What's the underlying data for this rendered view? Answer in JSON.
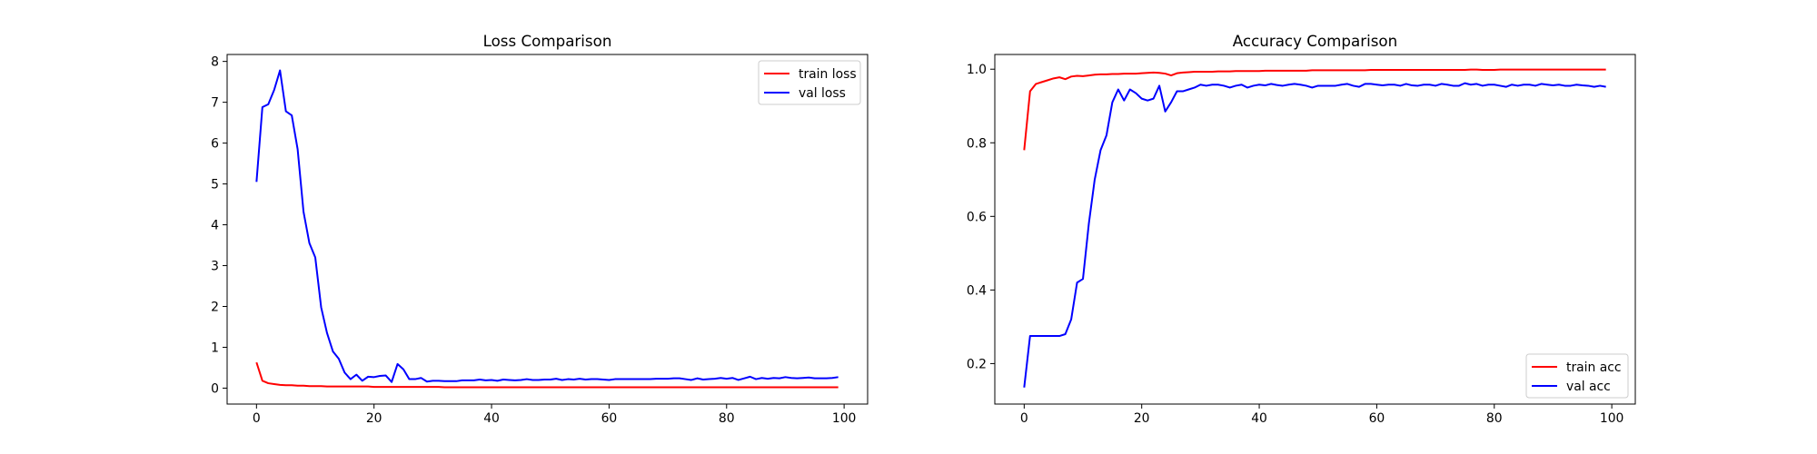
{
  "chart_data": [
    {
      "type": "line",
      "title": "Loss Comparison",
      "xlabel": "",
      "ylabel": "",
      "xlim": [
        -5,
        104
      ],
      "ylim": [
        -0.39,
        8.17
      ],
      "xticks": [
        0,
        20,
        40,
        60,
        80,
        100
      ],
      "yticks": [
        0,
        1,
        2,
        3,
        4,
        5,
        6,
        7,
        8
      ],
      "legend_position": "top-right",
      "grid": false,
      "series": [
        {
          "name": "train loss",
          "color": "#ff0000",
          "values": [
            0.63,
            0.18,
            0.12,
            0.1,
            0.08,
            0.07,
            0.07,
            0.06,
            0.06,
            0.05,
            0.05,
            0.05,
            0.04,
            0.04,
            0.04,
            0.04,
            0.04,
            0.04,
            0.04,
            0.04,
            0.03,
            0.03,
            0.03,
            0.03,
            0.03,
            0.03,
            0.03,
            0.03,
            0.03,
            0.03,
            0.03,
            0.03,
            0.02,
            0.02,
            0.02,
            0.02,
            0.02,
            0.02,
            0.02,
            0.02,
            0.02,
            0.02,
            0.02,
            0.02,
            0.02,
            0.02,
            0.02,
            0.02,
            0.02,
            0.02,
            0.02,
            0.02,
            0.02,
            0.02,
            0.02,
            0.02,
            0.02,
            0.02,
            0.02,
            0.02,
            0.02,
            0.02,
            0.02,
            0.02,
            0.02,
            0.02,
            0.02,
            0.02,
            0.02,
            0.02,
            0.02,
            0.02,
            0.02,
            0.02,
            0.02,
            0.02,
            0.02,
            0.02,
            0.02,
            0.02,
            0.02,
            0.02,
            0.02,
            0.02,
            0.02,
            0.02,
            0.02,
            0.02,
            0.02,
            0.02,
            0.02,
            0.02,
            0.02,
            0.02,
            0.02,
            0.02,
            0.02,
            0.02,
            0.02,
            0.02
          ]
        },
        {
          "name": "val loss",
          "color": "#0000ff",
          "values": [
            5.05,
            6.88,
            6.95,
            7.3,
            7.78,
            6.78,
            6.68,
            5.85,
            4.32,
            3.55,
            3.2,
            1.98,
            1.35,
            0.9,
            0.72,
            0.38,
            0.22,
            0.33,
            0.18,
            0.28,
            0.27,
            0.3,
            0.31,
            0.15,
            0.59,
            0.46,
            0.22,
            0.22,
            0.25,
            0.16,
            0.18,
            0.18,
            0.17,
            0.17,
            0.17,
            0.19,
            0.19,
            0.19,
            0.21,
            0.19,
            0.2,
            0.18,
            0.21,
            0.2,
            0.19,
            0.2,
            0.22,
            0.2,
            0.2,
            0.21,
            0.21,
            0.23,
            0.2,
            0.22,
            0.21,
            0.23,
            0.21,
            0.22,
            0.22,
            0.21,
            0.2,
            0.22,
            0.22,
            0.22,
            0.22,
            0.22,
            0.22,
            0.22,
            0.23,
            0.23,
            0.23,
            0.24,
            0.24,
            0.22,
            0.2,
            0.24,
            0.21,
            0.22,
            0.23,
            0.25,
            0.23,
            0.25,
            0.2,
            0.24,
            0.28,
            0.22,
            0.25,
            0.23,
            0.25,
            0.24,
            0.27,
            0.25,
            0.24,
            0.25,
            0.26,
            0.24,
            0.24,
            0.24,
            0.25,
            0.27
          ]
        }
      ]
    },
    {
      "type": "line",
      "title": "Accuracy Comparison",
      "xlabel": "",
      "ylabel": "",
      "xlim": [
        -5,
        104
      ],
      "ylim": [
        0.09,
        1.04
      ],
      "xticks": [
        0,
        20,
        40,
        60,
        80,
        100
      ],
      "yticks": [
        0.2,
        0.4,
        0.6,
        0.8,
        1.0
      ],
      "ytick_labels": [
        "0.2",
        "0.4",
        "0.6",
        "0.8",
        "1.0"
      ],
      "legend_position": "bottom-right",
      "grid": false,
      "series": [
        {
          "name": "train acc",
          "color": "#ff0000",
          "values": [
            0.78,
            0.94,
            0.96,
            0.965,
            0.97,
            0.975,
            0.978,
            0.973,
            0.98,
            0.982,
            0.981,
            0.983,
            0.985,
            0.986,
            0.986,
            0.987,
            0.987,
            0.988,
            0.988,
            0.988,
            0.989,
            0.99,
            0.991,
            0.99,
            0.988,
            0.983,
            0.989,
            0.991,
            0.992,
            0.993,
            0.993,
            0.993,
            0.993,
            0.994,
            0.994,
            0.994,
            0.995,
            0.995,
            0.995,
            0.995,
            0.995,
            0.996,
            0.996,
            0.996,
            0.996,
            0.996,
            0.996,
            0.996,
            0.996,
            0.997,
            0.997,
            0.997,
            0.997,
            0.997,
            0.997,
            0.997,
            0.997,
            0.997,
            0.997,
            0.998,
            0.998,
            0.998,
            0.998,
            0.998,
            0.998,
            0.998,
            0.998,
            0.998,
            0.998,
            0.998,
            0.998,
            0.998,
            0.998,
            0.998,
            0.998,
            0.998,
            0.999,
            0.999,
            0.998,
            0.998,
            0.998,
            0.999,
            0.999,
            0.999,
            0.999,
            0.999,
            0.999,
            0.999,
            0.999,
            0.999,
            0.999,
            0.999,
            0.999,
            0.999,
            0.999,
            0.999,
            0.999,
            0.999,
            0.999,
            0.999
          ]
        },
        {
          "name": "val acc",
          "color": "#0000ff",
          "values": [
            0.135,
            0.275,
            0.275,
            0.275,
            0.275,
            0.275,
            0.275,
            0.28,
            0.32,
            0.42,
            0.43,
            0.58,
            0.7,
            0.78,
            0.82,
            0.91,
            0.945,
            0.915,
            0.945,
            0.935,
            0.92,
            0.915,
            0.92,
            0.955,
            0.885,
            0.91,
            0.94,
            0.94,
            0.945,
            0.95,
            0.958,
            0.955,
            0.958,
            0.958,
            0.955,
            0.95,
            0.955,
            0.958,
            0.95,
            0.955,
            0.958,
            0.956,
            0.96,
            0.957,
            0.955,
            0.958,
            0.96,
            0.958,
            0.955,
            0.95,
            0.955,
            0.955,
            0.955,
            0.955,
            0.958,
            0.96,
            0.955,
            0.952,
            0.96,
            0.96,
            0.958,
            0.956,
            0.958,
            0.958,
            0.955,
            0.96,
            0.956,
            0.955,
            0.958,
            0.958,
            0.955,
            0.96,
            0.958,
            0.955,
            0.955,
            0.962,
            0.958,
            0.96,
            0.955,
            0.958,
            0.958,
            0.955,
            0.952,
            0.958,
            0.955,
            0.958,
            0.958,
            0.955,
            0.96,
            0.958,
            0.956,
            0.958,
            0.955,
            0.955,
            0.958,
            0.956,
            0.955,
            0.952,
            0.955,
            0.952
          ]
        }
      ]
    }
  ]
}
